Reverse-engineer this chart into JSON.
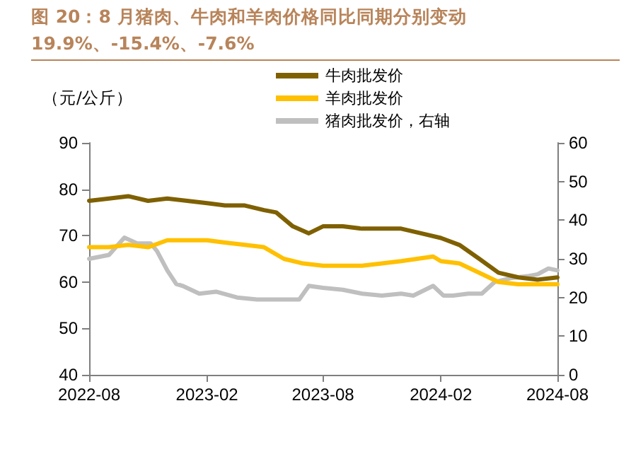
{
  "chart_data": {
    "type": "line",
    "title": "图 20：8 月猪肉、牛肉和羊肉价格同比同期分别变动 19.9%、-15.4%、-7.6%",
    "ylabel": "（元/公斤）",
    "xlim": [
      "2022-08-01",
      "2024-08-01"
    ],
    "xticks": [
      "2022-08",
      "2023-02",
      "2023-08",
      "2024-02",
      "2024-08"
    ],
    "ylim": [
      40,
      90
    ],
    "yticks": [
      40,
      50,
      60,
      70,
      80,
      90
    ],
    "y2lim": [
      0,
      60
    ],
    "y2ticks": [
      0,
      10,
      20,
      30,
      40,
      50,
      60
    ],
    "grid": false,
    "legend": "top",
    "marker": "none",
    "line_style": "solid",
    "series": [
      {
        "name": "牛肉批发价",
        "color": "#7f6000",
        "x": [
          "2022-08-01",
          "2022-09-01",
          "2022-10-01",
          "2022-11-01",
          "2022-12-01",
          "2023-01-01",
          "2023-02-01",
          "2023-03-01",
          "2023-04-01",
          "2023-05-01",
          "2023-05-20",
          "2023-06-15",
          "2023-07-10",
          "2023-08-01",
          "2023-09-01",
          "2023-10-01",
          "2023-11-01",
          "2023-12-01",
          "2024-01-01",
          "2024-02-01",
          "2024-03-01",
          "2024-04-01",
          "2024-05-01",
          "2024-06-01",
          "2024-07-01",
          "2024-08-01"
        ],
        "values": [
          77.5,
          78,
          78.5,
          77.5,
          78,
          77.5,
          77,
          76.5,
          76.5,
          75.5,
          75,
          72,
          70.5,
          72,
          72,
          71.5,
          71.5,
          71.5,
          70.5,
          69.5,
          68,
          65,
          62,
          61,
          60.5,
          61
        ]
      },
      {
        "name": "羊肉批发价",
        "color": "#ffc000",
        "x": [
          "2022-08-01",
          "2022-09-01",
          "2022-10-01",
          "2022-11-01",
          "2022-12-01",
          "2023-01-01",
          "2023-02-01",
          "2023-03-01",
          "2023-04-01",
          "2023-05-01",
          "2023-06-01",
          "2023-07-01",
          "2023-08-01",
          "2023-09-01",
          "2023-10-01",
          "2023-11-01",
          "2023-12-01",
          "2024-01-20",
          "2024-02-01",
          "2024-03-01",
          "2024-04-01",
          "2024-05-01",
          "2024-06-01",
          "2024-07-01",
          "2024-08-01"
        ],
        "values": [
          67.5,
          67.5,
          68,
          67.5,
          69,
          69,
          69,
          68.5,
          68,
          67.5,
          65,
          64,
          63.5,
          63.5,
          63.5,
          64,
          64.5,
          65.5,
          64.5,
          64,
          62,
          60,
          59.5,
          59.5,
          59.5
        ]
      },
      {
        "name": "猪肉批发价，右轴",
        "color": "#bfbfbf",
        "axis": "y2",
        "x": [
          "2022-08-01",
          "2022-09-01",
          "2022-09-25",
          "2022-10-15",
          "2022-11-05",
          "2022-11-15",
          "2022-12-01",
          "2022-12-15",
          "2022-12-25",
          "2023-01-20",
          "2023-02-15",
          "2023-03-20",
          "2023-04-20",
          "2023-05-20",
          "2023-06-25",
          "2023-07-10",
          "2023-08-01",
          "2023-09-01",
          "2023-10-01",
          "2023-11-01",
          "2023-12-01",
          "2023-12-20",
          "2024-01-20",
          "2024-02-05",
          "2024-02-20",
          "2024-03-15",
          "2024-04-05",
          "2024-04-25",
          "2024-05-20",
          "2024-06-15",
          "2024-07-01",
          "2024-07-18",
          "2024-08-01"
        ],
        "values": [
          30,
          31,
          35.5,
          34,
          34,
          32,
          27,
          23.5,
          23,
          21,
          21.5,
          20,
          19.5,
          19.5,
          19.5,
          23,
          22.5,
          22,
          21,
          20.5,
          21,
          20.5,
          23,
          20.5,
          20.5,
          21,
          21,
          24,
          25,
          25.5,
          26,
          27.5,
          27
        ]
      }
    ]
  }
}
